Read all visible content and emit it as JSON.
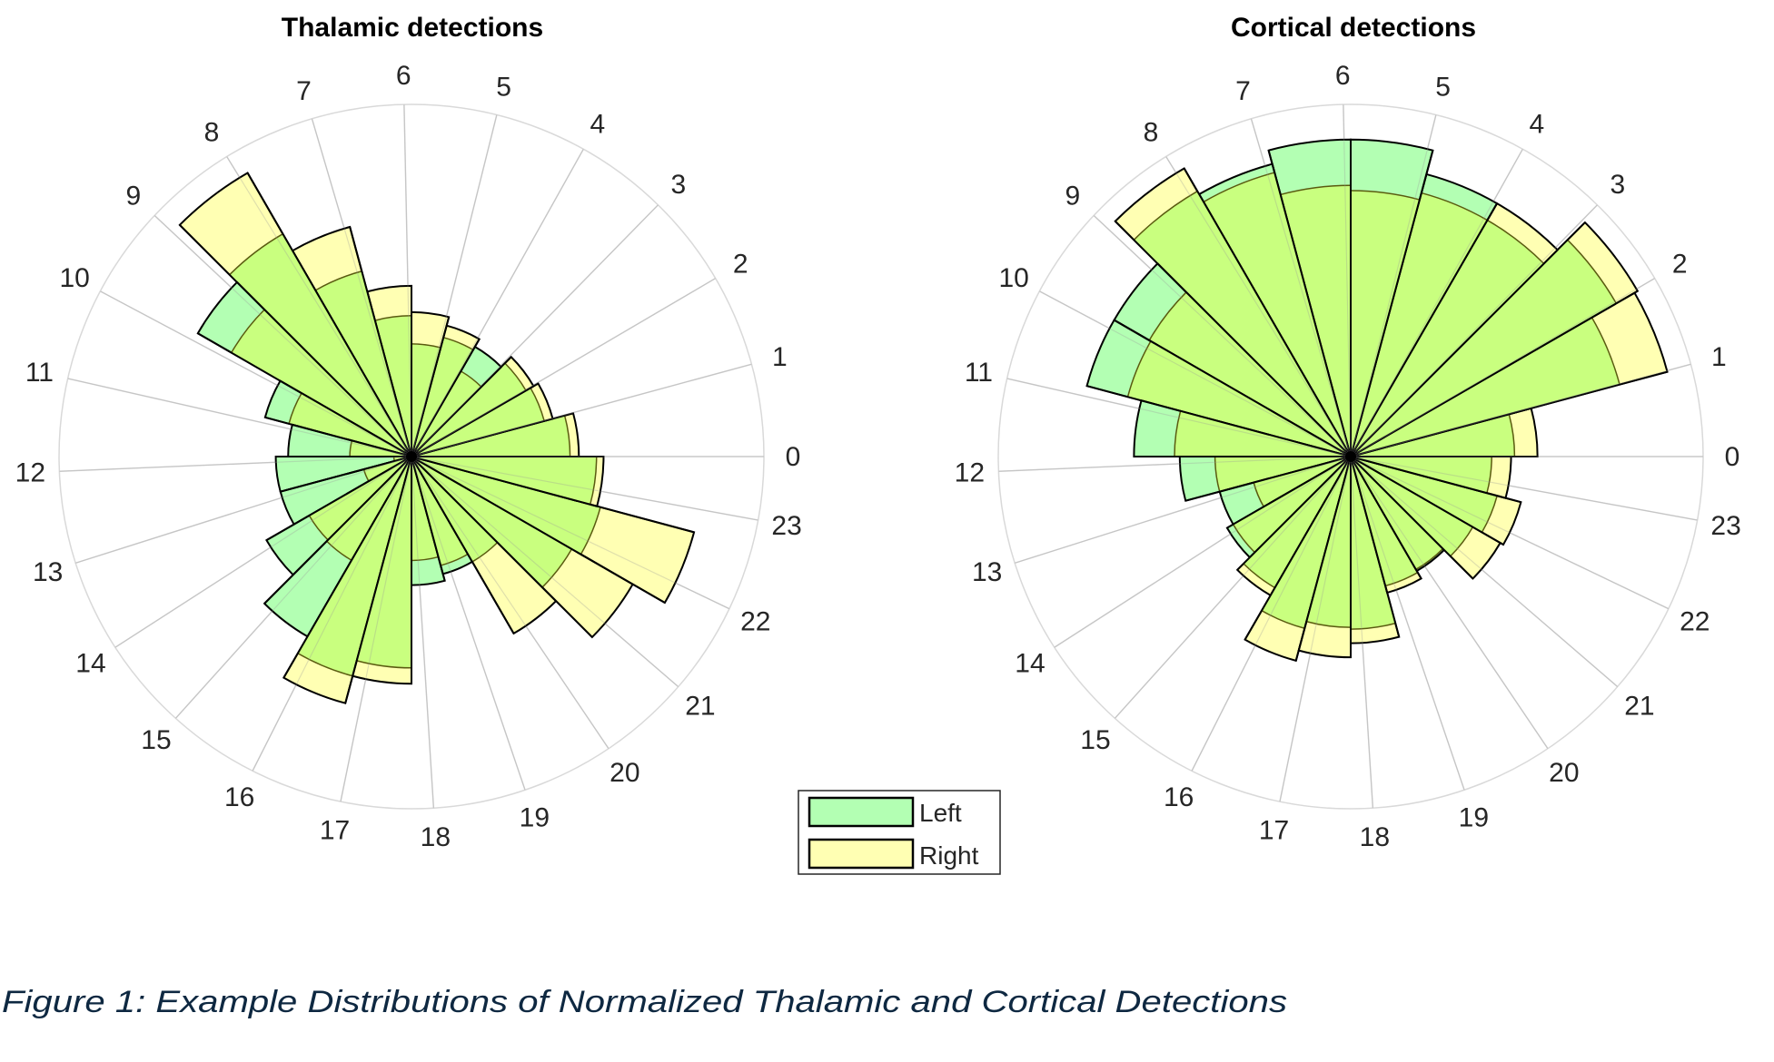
{
  "colors": {
    "left": "#b3ffb3",
    "right": "#ffffb3",
    "overlap": "#c9ff7f",
    "grid": "#d9d9d9",
    "edge": "#000000"
  },
  "legend": {
    "placement": "bottom-center",
    "entries": [
      {
        "label": "Left",
        "color": "#b3ffb3"
      },
      {
        "label": "Right",
        "color": "#ffffb3"
      }
    ]
  },
  "caption": "Figure 1: Example Distributions of Normalized Thalamic and Cortical Detections",
  "chart_data": [
    {
      "type": "polar_histogram",
      "title": "Thalamic detections",
      "theta_tick_labels": [
        "0",
        "1",
        "2",
        "3",
        "4",
        "5",
        "6",
        "7",
        "8",
        "9",
        "10",
        "11",
        "12",
        "13",
        "14",
        "15",
        "16",
        "17",
        "18",
        "19",
        "20",
        "21",
        "22",
        "23"
      ],
      "bins": [
        "0",
        "1",
        "2",
        "3",
        "4",
        "5",
        "6",
        "7",
        "8",
        "9",
        "10",
        "11",
        "12",
        "13",
        "14",
        "15",
        "16",
        "17",
        "18",
        "19",
        "20",
        "21",
        "22",
        "23"
      ],
      "rlim": [
        0,
        1
      ],
      "series": [
        {
          "name": "Left",
          "values": [
            0.45,
            0.39,
            0.375,
            0.36,
            0.35,
            0.32,
            0.4,
            0.545,
            0.73,
            0.7,
            0.43,
            0.35,
            0.385,
            0.385,
            0.475,
            0.59,
            0.645,
            0.6,
            0.365,
            0.345,
            0.345,
            0.525,
            0.555,
            0.525
          ]
        },
        {
          "name": "Right",
          "values": [
            0.475,
            0.415,
            0.4,
            0.28,
            0.385,
            0.41,
            0.485,
            0.675,
            0.93,
            0.59,
            0.36,
            0.175,
            0.05,
            0.14,
            0.335,
            0.34,
            0.725,
            0.645,
            0.295,
            0.32,
            0.58,
            0.725,
            0.83,
            0.545
          ]
        }
      ]
    },
    {
      "type": "polar_histogram",
      "title": "Cortical detections",
      "theta_tick_labels": [
        "0",
        "1",
        "2",
        "3",
        "4",
        "5",
        "6",
        "7",
        "8",
        "9",
        "10",
        "11",
        "12",
        "13",
        "14",
        "15",
        "16",
        "17",
        "18",
        "19",
        "20",
        "21",
        "22",
        "23"
      ],
      "bins": [
        "0",
        "1",
        "2",
        "3",
        "4",
        "5",
        "6",
        "7",
        "8",
        "9",
        "10",
        "11",
        "12",
        "13",
        "14",
        "15",
        "16",
        "17",
        "18",
        "19",
        "20",
        "21",
        "22",
        "23"
      ],
      "rlim": [
        0,
        1
      ],
      "series": [
        {
          "name": "Left",
          "values": [
            0.465,
            0.79,
            0.87,
            0.775,
            0.83,
            0.9,
            0.9,
            0.86,
            0.87,
            0.775,
            0.775,
            0.615,
            0.485,
            0.385,
            0.405,
            0.43,
            0.505,
            0.485,
            0.49,
            0.38,
            0.375,
            0.4,
            0.43,
            0.4
          ]
        },
        {
          "name": "Right",
          "values": [
            0.53,
            0.93,
            0.94,
            0.83,
            0.775,
            0.755,
            0.77,
            0.835,
            0.945,
            0.66,
            0.655,
            0.5,
            0.385,
            0.285,
            0.385,
            0.455,
            0.6,
            0.57,
            0.53,
            0.4,
            0.37,
            0.49,
            0.5,
            0.455
          ]
        }
      ]
    }
  ]
}
